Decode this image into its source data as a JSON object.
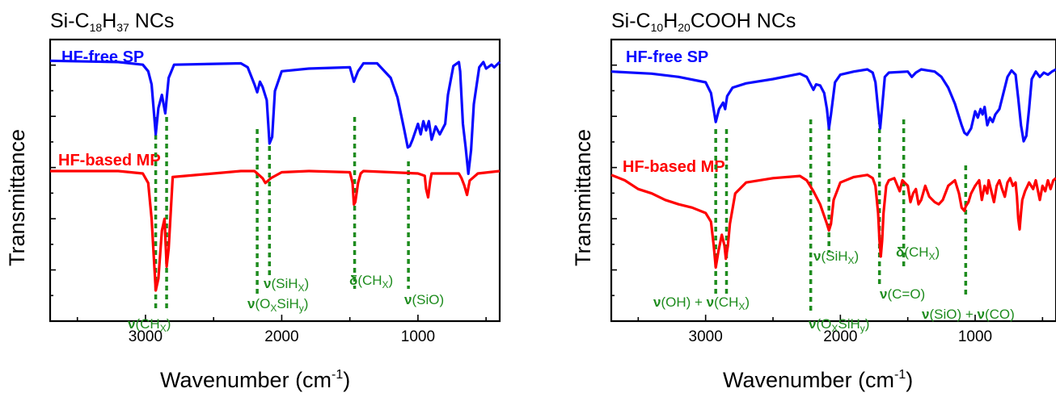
{
  "chart_data": [
    {
      "type": "line",
      "title_parts": [
        "Si-C",
        "18",
        "H",
        "37",
        " NCs"
      ],
      "xlabel": "Wavenumber (cm",
      "xlabel_sup": "-1",
      "xlabel_end": ")",
      "ylabel": "Transmittance",
      "xlim": [
        3700,
        400
      ],
      "x_ticks": [
        "3000",
        "2000",
        "1000"
      ],
      "x_tick_values": [
        3000,
        2000,
        1000
      ],
      "series": [
        {
          "name": "HF-free SP",
          "color": "#0a0aff",
          "x": [
            3700,
            3200,
            3020,
            2980,
            2955,
            2925,
            2905,
            2880,
            2855,
            2830,
            2790,
            2300,
            2250,
            2200,
            2180,
            2160,
            2140,
            2110,
            2090,
            2070,
            2050,
            2000,
            1800,
            1500,
            1470,
            1440,
            1400,
            1300,
            1200,
            1150,
            1100,
            1075,
            1060,
            1040,
            1000,
            980,
            960,
            940,
            920,
            900,
            870,
            840,
            800,
            780,
            740,
            700,
            690,
            670,
            650,
            630,
            610,
            590,
            550,
            520,
            500,
            460,
            440,
            400
          ],
          "y": [
            0.98,
            0.97,
            0.95,
            0.9,
            0.8,
            0.42,
            0.62,
            0.72,
            0.58,
            0.85,
            0.95,
            0.96,
            0.93,
            0.8,
            0.74,
            0.82,
            0.78,
            0.68,
            0.35,
            0.4,
            0.75,
            0.9,
            0.92,
            0.93,
            0.82,
            0.9,
            0.96,
            0.96,
            0.85,
            0.7,
            0.45,
            0.32,
            0.33,
            0.38,
            0.5,
            0.42,
            0.52,
            0.45,
            0.52,
            0.38,
            0.48,
            0.42,
            0.5,
            0.72,
            0.94,
            0.97,
            0.9,
            0.5,
            0.32,
            0.12,
            0.3,
            0.65,
            0.93,
            0.97,
            0.92,
            0.95,
            0.93,
            0.97
          ]
        },
        {
          "name": "HF-based MP",
          "color": "#ff0000",
          "x": [
            3700,
            3200,
            3020,
            2980,
            2955,
            2925,
            2905,
            2880,
            2860,
            2845,
            2830,
            2800,
            2300,
            2200,
            2180,
            2140,
            2120,
            2100,
            2080,
            2000,
            1800,
            1500,
            1480,
            1470,
            1460,
            1440,
            1420,
            1400,
            1000,
            950,
            940,
            925,
            910,
            900,
            800,
            700,
            680,
            660,
            640,
            620,
            560,
            400
          ],
          "y": [
            1.0,
            1.0,
            0.98,
            0.9,
            0.6,
            0.0,
            0.1,
            0.5,
            0.6,
            0.2,
            0.35,
            0.95,
            1.0,
            1.0,
            0.98,
            0.94,
            0.9,
            0.92,
            0.94,
            0.99,
            1.0,
            0.99,
            0.9,
            0.72,
            0.74,
            0.9,
            0.98,
            1.0,
            0.98,
            0.96,
            0.85,
            0.78,
            0.92,
            0.98,
            0.98,
            0.98,
            0.94,
            0.88,
            0.8,
            0.92,
            0.98,
            1.0
          ]
        }
      ],
      "annotations": [
        {
          "id": "vch",
          "x": 2890,
          "parts": [
            [
              "nu",
              "ν"
            ],
            [
              "t",
              "(CH"
            ],
            [
              "sub",
              "X"
            ],
            [
              "t",
              ")"
            ]
          ]
        },
        {
          "id": "vsih",
          "x": 2150,
          "parts": [
            [
              "nu",
              "ν"
            ],
            [
              "t",
              "(SiH"
            ],
            [
              "sub",
              "X"
            ],
            [
              "t",
              ")"
            ]
          ]
        },
        {
          "id": "voxsih",
          "x": 2150,
          "parts": [
            [
              "nu",
              "ν"
            ],
            [
              "t",
              "(O"
            ],
            [
              "sub",
              "X"
            ],
            [
              "t",
              "SiH"
            ],
            [
              "sub",
              "y"
            ],
            [
              "t",
              ")"
            ]
          ]
        },
        {
          "id": "dch",
          "x": 1465,
          "parts": [
            [
              "nu",
              "δ"
            ],
            [
              "t",
              "(CH"
            ],
            [
              "sub",
              "X"
            ],
            [
              "t",
              ")"
            ]
          ]
        },
        {
          "id": "vsio",
          "x": 1070,
          "parts": [
            [
              "nu",
              "ν"
            ],
            [
              "t",
              "(SiO)"
            ]
          ]
        }
      ],
      "guide_lines": [
        2925,
        2845,
        2180,
        2090,
        1465,
        1070
      ]
    },
    {
      "type": "line",
      "title_parts": [
        "Si-C",
        "10",
        "H",
        "20",
        "COOH NCs"
      ],
      "xlabel": "Wavenumber (cm",
      "xlabel_sup": "-1",
      "xlabel_end": ")",
      "ylabel": "Transmittance",
      "xlim": [
        3700,
        400
      ],
      "x_ticks": [
        "3000",
        "2000",
        "1000"
      ],
      "x_tick_values": [
        3000,
        2000,
        1000
      ],
      "series": [
        {
          "name": "HF-free SP",
          "color": "#0a0aff",
          "x": [
            3700,
            3400,
            3200,
            3000,
            2960,
            2925,
            2900,
            2870,
            2855,
            2840,
            2800,
            2700,
            2500,
            2300,
            2250,
            2200,
            2180,
            2150,
            2120,
            2100,
            2085,
            2070,
            2040,
            2000,
            1900,
            1800,
            1760,
            1740,
            1720,
            1705,
            1690,
            1670,
            1640,
            1500,
            1470,
            1440,
            1400,
            1300,
            1250,
            1200,
            1150,
            1100,
            1080,
            1060,
            1030,
            1000,
            980,
            960,
            945,
            930,
            910,
            890,
            870,
            850,
            820,
            790,
            760,
            730,
            700,
            680,
            660,
            640,
            620,
            600,
            580,
            550,
            520,
            490,
            460,
            430,
            400
          ],
          "y": [
            0.95,
            0.93,
            0.9,
            0.85,
            0.75,
            0.48,
            0.6,
            0.66,
            0.6,
            0.72,
            0.8,
            0.84,
            0.88,
            0.93,
            0.9,
            0.78,
            0.83,
            0.82,
            0.75,
            0.6,
            0.42,
            0.55,
            0.85,
            0.92,
            0.95,
            0.97,
            0.94,
            0.85,
            0.6,
            0.42,
            0.62,
            0.9,
            0.94,
            0.95,
            0.9,
            0.94,
            0.97,
            0.95,
            0.9,
            0.8,
            0.65,
            0.45,
            0.38,
            0.36,
            0.42,
            0.58,
            0.52,
            0.6,
            0.55,
            0.62,
            0.45,
            0.52,
            0.48,
            0.55,
            0.6,
            0.75,
            0.9,
            0.96,
            0.92,
            0.7,
            0.45,
            0.3,
            0.35,
            0.6,
            0.88,
            0.95,
            0.9,
            0.94,
            0.92,
            0.95,
            0.97
          ]
        },
        {
          "name": "HF-based MP",
          "color": "#ff0000",
          "x": [
            3700,
            3600,
            3500,
            3400,
            3300,
            3200,
            3100,
            3000,
            2960,
            2940,
            2925,
            2905,
            2880,
            2860,
            2850,
            2835,
            2820,
            2780,
            2700,
            2500,
            2300,
            2250,
            2200,
            2150,
            2100,
            2085,
            2070,
            2050,
            2000,
            1900,
            1800,
            1760,
            1740,
            1720,
            1710,
            1700,
            1690,
            1680,
            1660,
            1640,
            1600,
            1560,
            1540,
            1500,
            1480,
            1460,
            1440,
            1420,
            1400,
            1370,
            1340,
            1300,
            1270,
            1240,
            1200,
            1150,
            1120,
            1100,
            1080,
            1070,
            1050,
            1030,
            1000,
            970,
            950,
            930,
            910,
            900,
            880,
            860,
            840,
            820,
            800,
            780,
            760,
            740,
            720,
            700,
            690,
            680,
            670,
            660,
            650,
            630,
            600,
            570,
            550,
            520,
            500,
            480,
            460,
            440,
            420,
            400
          ],
          "y": [
            0.95,
            0.9,
            0.82,
            0.78,
            0.72,
            0.68,
            0.65,
            0.6,
            0.52,
            0.3,
            0.1,
            0.25,
            0.4,
            0.3,
            0.18,
            0.3,
            0.5,
            0.78,
            0.88,
            0.92,
            0.94,
            0.9,
            0.8,
            0.68,
            0.5,
            0.44,
            0.5,
            0.72,
            0.88,
            0.93,
            0.95,
            0.92,
            0.85,
            0.6,
            0.35,
            0.2,
            0.35,
            0.6,
            0.85,
            0.9,
            0.92,
            0.8,
            0.9,
            0.85,
            0.7,
            0.78,
            0.82,
            0.68,
            0.72,
            0.85,
            0.75,
            0.7,
            0.68,
            0.72,
            0.85,
            0.9,
            0.78,
            0.65,
            0.62,
            0.66,
            0.7,
            0.78,
            0.85,
            0.9,
            0.72,
            0.85,
            0.78,
            0.9,
            0.8,
            0.7,
            0.85,
            0.9,
            0.82,
            0.75,
            0.88,
            0.92,
            0.85,
            0.88,
            0.75,
            0.55,
            0.45,
            0.6,
            0.72,
            0.8,
            0.88,
            0.82,
            0.9,
            0.72,
            0.85,
            0.8,
            0.9,
            0.82,
            0.9,
            0.92
          ]
        }
      ],
      "annotations": [
        {
          "id": "vohch",
          "x": 2890,
          "parts": [
            [
              "nu",
              "ν"
            ],
            [
              "t",
              "(OH) + "
            ],
            [
              "nu",
              "ν"
            ],
            [
              "t",
              "(CH"
            ],
            [
              "sub",
              "X"
            ],
            [
              "t",
              ")"
            ]
          ]
        },
        {
          "id": "vsih",
          "x": 2085,
          "parts": [
            [
              "nu",
              "ν"
            ],
            [
              "t",
              "(SiH"
            ],
            [
              "sub",
              "X"
            ],
            [
              "t",
              ")"
            ]
          ]
        },
        {
          "id": "voxsih",
          "x": 2220,
          "parts": [
            [
              "nu",
              "ν"
            ],
            [
              "t",
              "(O"
            ],
            [
              "sub",
              "X"
            ],
            [
              "t",
              "SiH"
            ],
            [
              "sub",
              "y"
            ],
            [
              "t",
              ")"
            ]
          ]
        },
        {
          "id": "dch",
          "x": 1530,
          "parts": [
            [
              "nu",
              "δ"
            ],
            [
              "t",
              "(CH"
            ],
            [
              "sub",
              "X"
            ],
            [
              "t",
              ")"
            ]
          ]
        },
        {
          "id": "vco",
          "x": 1710,
          "parts": [
            [
              "nu",
              "ν"
            ],
            [
              "t",
              "(C=O)"
            ]
          ]
        },
        {
          "id": "vsioco",
          "x": 1070,
          "parts": [
            [
              "nu",
              "ν"
            ],
            [
              "t",
              "(SiO) + "
            ],
            [
              "nu",
              "ν"
            ],
            [
              "t",
              "(CO)"
            ]
          ]
        }
      ],
      "guide_lines": [
        2925,
        2845,
        2220,
        2085,
        1710,
        1530,
        1070
      ]
    }
  ]
}
